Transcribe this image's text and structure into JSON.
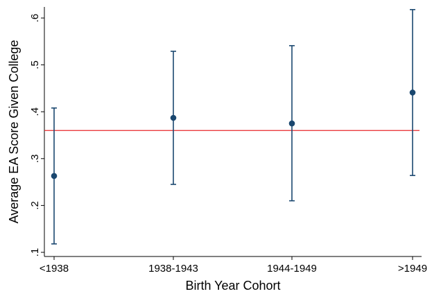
{
  "chart_data": {
    "type": "scatter",
    "title": "",
    "xlabel": "Birth Year Cohort",
    "ylabel": "Average EA Score Given College",
    "categories": [
      "<1938",
      "1938-1943",
      "1944-1949",
      ">1949"
    ],
    "series": [
      {
        "values": [
          0.263,
          0.387,
          0.375,
          0.441
        ],
        "ci_lower": [
          0.118,
          0.245,
          0.21,
          0.264
        ],
        "ci_upper": [
          0.408,
          0.529,
          0.541,
          0.618
        ]
      }
    ],
    "reference_line": {
      "y": 0.36,
      "color": "#e8262a"
    },
    "ylim": [
      0.1,
      0.6
    ],
    "yticks": [
      0.1,
      0.2,
      0.3,
      0.4,
      0.5,
      0.6
    ],
    "ytick_labels": [
      ".1",
      ".2",
      ".3",
      ".4",
      ".5",
      ".6"
    ],
    "grid": false,
    "colors": {
      "series": "#1a476f",
      "reference": "#e8262a",
      "axis": "#000000"
    }
  }
}
